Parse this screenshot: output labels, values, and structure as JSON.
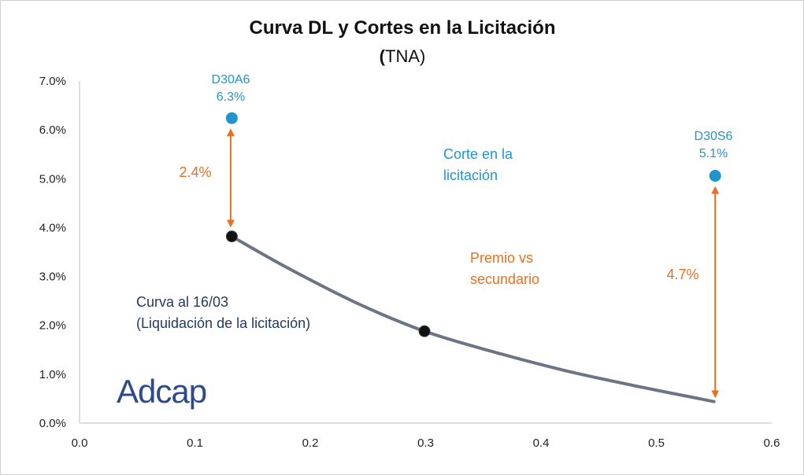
{
  "chart_data": {
    "type": "scatter",
    "title": "Curva DL y Cortes en la Licitación",
    "subtitle_paren_open": "(",
    "subtitle_text": "TNA)",
    "xlabel": "",
    "ylabel": "",
    "xlim": [
      0.0,
      0.6
    ],
    "ylim": [
      0.0,
      0.07
    ],
    "x_ticks": [
      0.0,
      0.1,
      0.2,
      0.3,
      0.4,
      0.5,
      0.6
    ],
    "x_tick_labels": [
      "0.0",
      "0.1",
      "0.2",
      "0.3",
      "0.4",
      "0.5",
      "0.6"
    ],
    "y_ticks": [
      0.0,
      0.01,
      0.02,
      0.03,
      0.04,
      0.05,
      0.06,
      0.07
    ],
    "y_tick_labels": [
      "0.0%",
      "1.0%",
      "2.0%",
      "3.0%",
      "4.0%",
      "5.0%",
      "6.0%",
      "7.0%"
    ],
    "grid": false,
    "series": [
      {
        "name": "Curva al 16/03",
        "kind": "line",
        "color": "#6b7585",
        "x": [
          0.132,
          0.18,
          0.24,
          0.299,
          0.36,
          0.42,
          0.48,
          0.55
        ],
        "y": [
          0.0382,
          0.0318,
          0.0246,
          0.0188,
          0.0145,
          0.0108,
          0.0077,
          0.0044
        ]
      },
      {
        "name": "Curva points",
        "kind": "scatter",
        "color": "#111111",
        "x": [
          0.132,
          0.299
        ],
        "y": [
          0.0382,
          0.0188
        ]
      },
      {
        "name": "Corte en la licitación",
        "kind": "scatter",
        "color": "#1f95cc",
        "points": [
          {
            "label": "D30A6",
            "value_label": "6.3%",
            "x": 0.132,
            "y": 0.0624
          },
          {
            "label": "D30S6",
            "value_label": "5.1%",
            "x": 0.551,
            "y": 0.0506
          }
        ]
      }
    ],
    "arrows": [
      {
        "label": "2.4%",
        "x": 0.131,
        "y_from": 0.0595,
        "y_to": 0.0408,
        "color": "#e8701f"
      },
      {
        "label": "4.7%",
        "x": 0.551,
        "y_from": 0.0477,
        "y_to": 0.0059,
        "color": "#e8701f"
      }
    ],
    "annotations": {
      "corte_line1": "Corte en la",
      "corte_line2": "licitación",
      "premio_line1": "Premio vs",
      "premio_line2": "secundario",
      "curva_line1": "Curva al 16/03",
      "curva_line2": "(Liquidación de la licitación)"
    }
  },
  "logo_text": "Adcap",
  "colors": {
    "blue": "#1f95cc",
    "orange": "#e8701f",
    "navy": "#243a5e",
    "curve": "#6b7585"
  }
}
